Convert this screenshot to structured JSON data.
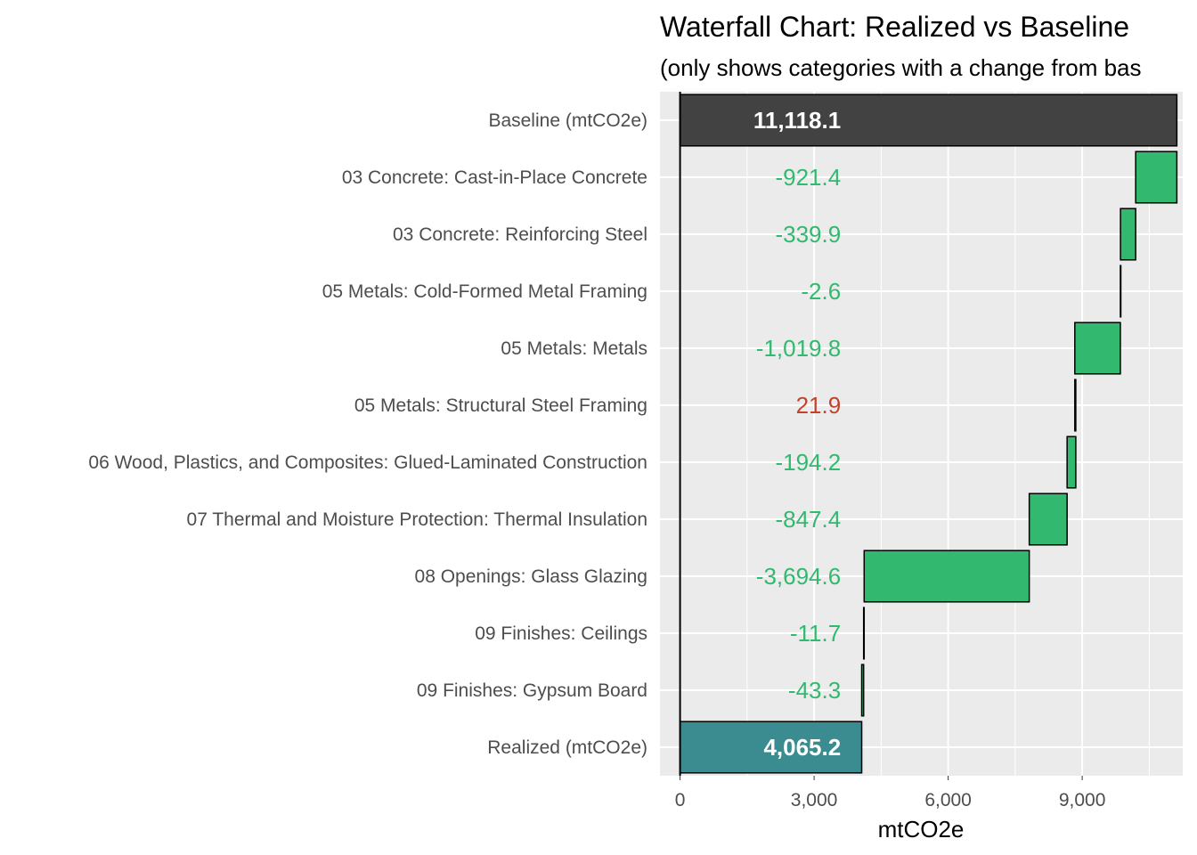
{
  "colors": {
    "panel": "#ebebeb",
    "grid": "#ffffff",
    "baseline": "#424242",
    "realized": "#3a8c91",
    "decrease": "#33b96f",
    "increase": "#c0432e",
    "total_text": "#ffffff",
    "bar_outline": "#000000"
  },
  "chart_data": {
    "type": "bar",
    "subtype": "waterfall",
    "orientation": "horizontal",
    "title": "Waterfall Chart: Realized vs Baseline",
    "subtitle": "(only shows categories with a change from bas",
    "xlabel": "mtCO2e",
    "ylabel": "",
    "xlim": [
      -450,
      11250
    ],
    "x_ticks": [
      0,
      3000,
      6000,
      9000
    ],
    "x_tick_labels": [
      "0",
      "3,000",
      "6,000",
      "9,000"
    ],
    "grid": true,
    "legend": "none",
    "bars": [
      {
        "category": "Baseline (mtCO2e)",
        "start": 0,
        "end": 11118.1,
        "kind": "total",
        "label": "11,118.1"
      },
      {
        "category": "03 Concrete: Cast-in-Place Concrete",
        "start": 11118.1,
        "end": 10196.7,
        "kind": "decrease",
        "label": "-921.4"
      },
      {
        "category": "03 Concrete: Reinforcing Steel",
        "start": 10196.7,
        "end": 9856.8,
        "kind": "decrease",
        "label": "-339.9"
      },
      {
        "category": "05 Metals: Cold-Formed Metal Framing",
        "start": 9856.8,
        "end": 9854.2,
        "kind": "decrease",
        "label": "-2.6"
      },
      {
        "category": "05 Metals: Metals",
        "start": 9854.2,
        "end": 8834.4,
        "kind": "decrease",
        "label": "-1,019.8"
      },
      {
        "category": "05 Metals: Structural Steel Framing",
        "start": 8834.4,
        "end": 8856.3,
        "kind": "increase",
        "label": "21.9"
      },
      {
        "category": "06 Wood, Plastics, and Composites: Glued-Laminated Construction",
        "start": 8856.3,
        "end": 8662.1,
        "kind": "decrease",
        "label": "-194.2"
      },
      {
        "category": "07 Thermal and Moisture Protection: Thermal Insulation",
        "start": 8662.1,
        "end": 7814.7,
        "kind": "decrease",
        "label": "-847.4"
      },
      {
        "category": "08 Openings: Glass Glazing",
        "start": 7814.7,
        "end": 4120.1,
        "kind": "decrease",
        "label": "-3,694.6"
      },
      {
        "category": "09 Finishes: Ceilings",
        "start": 4120.1,
        "end": 4108.4,
        "kind": "decrease",
        "label": "-11.7"
      },
      {
        "category": "09 Finishes: Gypsum Board",
        "start": 4108.4,
        "end": 4065.1,
        "kind": "decrease",
        "label": "-43.3"
      },
      {
        "category": "Realized (mtCO2e)",
        "start": 0,
        "end": 4065.2,
        "kind": "realized",
        "label": "4,065.2"
      }
    ],
    "value_label_x": 3600
  }
}
